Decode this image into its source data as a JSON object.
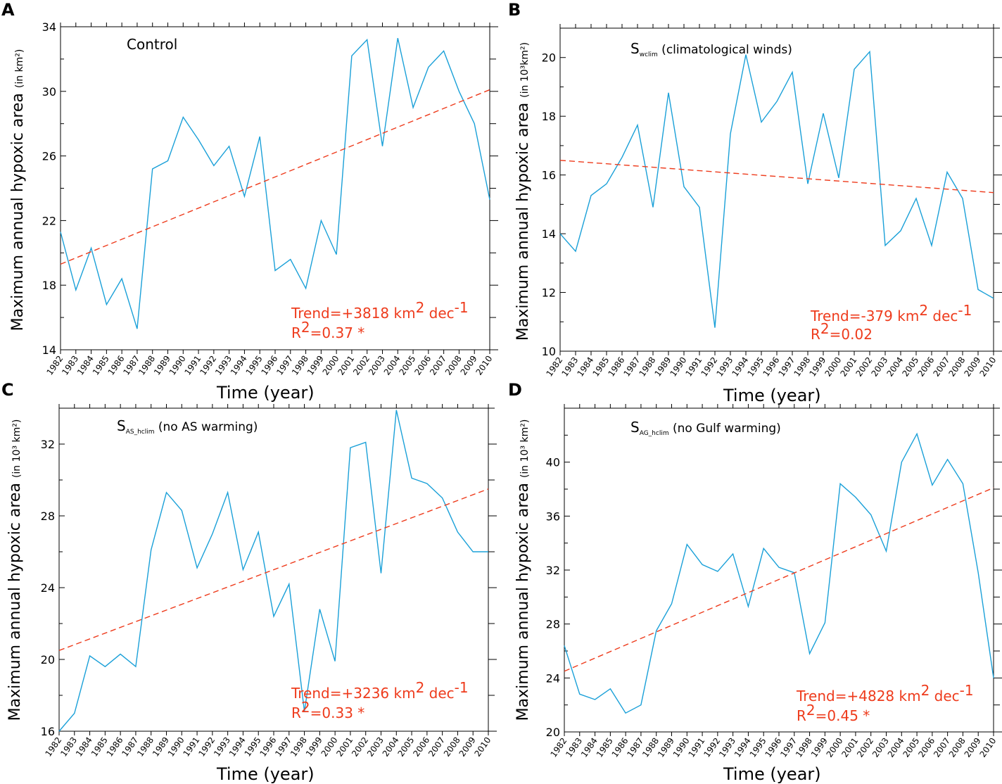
{
  "colors": {
    "series": "#1aa0d8",
    "trend": "#ee3b1c",
    "axis": "#000000"
  },
  "chart_data": [
    {
      "type": "line",
      "panel": "A",
      "annotation_main": "Control",
      "annotation_sub": "",
      "annotation_rest": "",
      "ylabel_main": "Maximum annual hypoxic area",
      "ylabel_unit": "(in km²)",
      "xlabel": "Time (year)",
      "ylim": [
        14,
        34
      ],
      "yticks": [
        14,
        18,
        22,
        26,
        30,
        34
      ],
      "ytick_labels": [
        "14",
        "18",
        "22",
        "26",
        "30",
        "34"
      ],
      "x": [
        1982,
        1983,
        1984,
        1985,
        1986,
        1987,
        1988,
        1989,
        1990,
        1991,
        1992,
        1993,
        1994,
        1995,
        1996,
        1997,
        1998,
        1999,
        2000,
        2001,
        2002,
        2003,
        2004,
        2005,
        2006,
        2007,
        2008,
        2009,
        2010
      ],
      "values": [
        21.3,
        17.7,
        20.3,
        16.8,
        18.4,
        15.3,
        25.2,
        25.7,
        28.4,
        27.0,
        25.4,
        26.6,
        23.5,
        27.2,
        18.9,
        19.6,
        17.8,
        22.0,
        19.9,
        32.2,
        33.2,
        26.6,
        33.3,
        29.0,
        31.5,
        32.5,
        30.0,
        28.0,
        23.3
      ],
      "trend": [
        19.3,
        30.1
      ],
      "trend_label": "Trend=+3818 km",
      "trend_exp": "2",
      "trend_unit": " dec",
      "trend_unit_exp": "-1",
      "r2_label": "R",
      "r2_exp": "2",
      "r2_value": "=0.37 *"
    },
    {
      "type": "line",
      "panel": "B",
      "annotation_main": "S",
      "annotation_sub": "wclim",
      "annotation_rest": " (climatological winds)",
      "ylabel_main": "Maximum annual hypoxic area",
      "ylabel_unit": "(in 10³km²)",
      "xlabel": "Time (year)",
      "ylim": [
        10,
        21
      ],
      "yticks": [
        10,
        12,
        14,
        16,
        18,
        20
      ],
      "ytick_labels": [
        "10",
        "12",
        "14",
        "16",
        "18",
        "20"
      ],
      "x": [
        1982,
        1983,
        1984,
        1985,
        1986,
        1987,
        1988,
        1989,
        1990,
        1991,
        1992,
        1993,
        1994,
        1995,
        1996,
        1997,
        1998,
        1999,
        2000,
        2001,
        2002,
        2003,
        2004,
        2005,
        2006,
        2007,
        2008,
        2009,
        2010
      ],
      "values": [
        14.0,
        13.4,
        15.3,
        15.7,
        16.6,
        17.7,
        14.9,
        18.8,
        15.6,
        14.9,
        10.8,
        17.4,
        20.1,
        17.8,
        18.5,
        19.5,
        15.7,
        18.1,
        15.9,
        19.6,
        20.2,
        13.6,
        14.1,
        15.2,
        13.6,
        16.1,
        15.2,
        12.1,
        11.8
      ],
      "trend": [
        16.5,
        15.4
      ],
      "trend_label": "Trend=-379 km",
      "trend_exp": "2",
      "trend_unit": " dec",
      "trend_unit_exp": "-1",
      "r2_label": "R",
      "r2_exp": "2",
      "r2_value": "=0.02"
    },
    {
      "type": "line",
      "panel": "C",
      "annotation_main": "S",
      "annotation_sub": "AS_hclim",
      "annotation_rest": " (no AS warming)",
      "ylabel_main": "Maximum annual hypoxic area",
      "ylabel_unit": "(in 10³ km²)",
      "xlabel": "Time (year)",
      "ylim": [
        16,
        34
      ],
      "yticks": [
        16,
        20,
        24,
        28,
        32
      ],
      "ytick_labels": [
        "16",
        "20",
        "24",
        "28",
        "32"
      ],
      "x": [
        1982,
        1983,
        1984,
        1985,
        1986,
        1987,
        1988,
        1989,
        1990,
        1991,
        1992,
        1993,
        1994,
        1995,
        1996,
        1997,
        1998,
        1999,
        2000,
        2001,
        2002,
        2003,
        2004,
        2005,
        2006,
        2007,
        2008,
        2009,
        2010
      ],
      "values": [
        16.0,
        17.0,
        20.2,
        19.6,
        20.3,
        19.6,
        26.1,
        29.3,
        28.3,
        25.1,
        27.0,
        29.3,
        25.0,
        27.1,
        22.4,
        24.2,
        17.1,
        22.8,
        19.9,
        31.8,
        32.1,
        24.8,
        33.9,
        30.1,
        29.8,
        29.0,
        27.1,
        26.0,
        26.0
      ],
      "trend": [
        20.5,
        29.5
      ],
      "trend_label": "Trend=+3236 km",
      "trend_exp": "2",
      "trend_unit": " dec",
      "trend_unit_exp": "-1",
      "r2_label": "R",
      "r2_exp": "2",
      "r2_value": "=0.33 *"
    },
    {
      "type": "line",
      "panel": "D",
      "annotation_main": "S",
      "annotation_sub": "AG_hclim",
      "annotation_rest": " (no Gulf warming)",
      "ylabel_main": "Maximum annual hypoxic area",
      "ylabel_unit": "(in 10³ km²)",
      "xlabel": "Time (year)",
      "ylim": [
        20,
        44
      ],
      "yticks": [
        20,
        24,
        28,
        32,
        36,
        40
      ],
      "ytick_labels": [
        "20",
        "24",
        "28",
        "32",
        "36",
        "40"
      ],
      "x": [
        1982,
        1983,
        1984,
        1985,
        1986,
        1987,
        1988,
        1989,
        1990,
        1991,
        1992,
        1993,
        1994,
        1995,
        1996,
        1997,
        1998,
        1999,
        2000,
        2001,
        2002,
        2003,
        2004,
        2005,
        2006,
        2007,
        2008,
        2009,
        2010
      ],
      "values": [
        26.4,
        22.8,
        22.4,
        23.2,
        21.4,
        22.0,
        27.5,
        29.5,
        33.9,
        32.4,
        31.9,
        33.2,
        29.3,
        33.6,
        32.2,
        31.8,
        25.8,
        28.1,
        38.4,
        37.4,
        36.1,
        33.4,
        40.0,
        42.1,
        38.3,
        40.2,
        38.4,
        31.8,
        24.0
      ],
      "trend": [
        24.5,
        38.1
      ],
      "trend_label": "Trend=+4828 km",
      "trend_exp": "2",
      "trend_unit": " dec",
      "trend_unit_exp": "-1",
      "r2_label": "R",
      "r2_exp": "2",
      "r2_value": "=0.45 *"
    }
  ]
}
